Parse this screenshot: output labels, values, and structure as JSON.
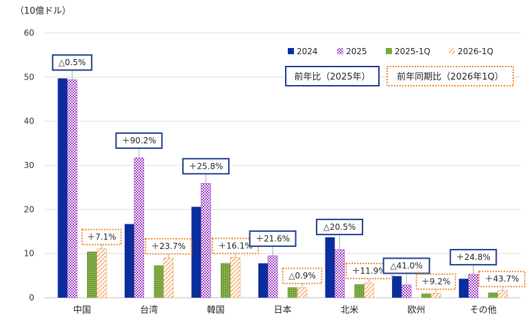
{
  "colors": {
    "s2024": "#0A2E9C",
    "s2025_main": "#9B3FC8",
    "s2025_bg": "#FFFFFF",
    "s2025q1": "#7BA542",
    "s2026q1": "#F0A050",
    "annual_box": "#1A3C8C",
    "q1_box": "#F0821E",
    "grid": "#D9D9D9"
  },
  "chart_data": {
    "type": "bar",
    "unit_label": "（10億ドル）",
    "ylim": [
      0,
      60
    ],
    "yticks": [
      0,
      10,
      20,
      30,
      40,
      50,
      60
    ],
    "categories": [
      "中国",
      "台湾",
      "韓国",
      "日本",
      "北米",
      "欧州",
      "その他"
    ],
    "series": [
      {
        "name": "2024",
        "values": [
          49.7,
          16.7,
          20.6,
          7.8,
          13.7,
          4.9,
          4.3
        ]
      },
      {
        "name": "2025",
        "values": [
          49.4,
          31.7,
          25.9,
          9.5,
          10.9,
          2.9,
          5.3
        ]
      },
      {
        "name": "2025-1Q",
        "values": [
          10.4,
          7.3,
          7.8,
          2.3,
          3.0,
          0.9,
          1.1
        ]
      },
      {
        "name": "2026-1Q",
        "values": [
          11.1,
          9.0,
          9.1,
          2.3,
          3.4,
          1.0,
          1.6
        ]
      }
    ],
    "annual_growth_labels": [
      "△0.5%",
      "＋90.2%",
      "＋25.8%",
      "＋21.6%",
      "△20.5%",
      "△41.0%",
      "＋24.8%"
    ],
    "q1_growth_labels": [
      "＋7.1%",
      "＋23.7%",
      "＋16.1%",
      "△0.9%",
      "＋11.9%",
      "＋9.2%",
      "＋43.7%"
    ],
    "legend_box_annual": "前年比（2025年）",
    "legend_box_q1": "前年同期比（2026年1Q）",
    "legend_position": "top-right"
  }
}
